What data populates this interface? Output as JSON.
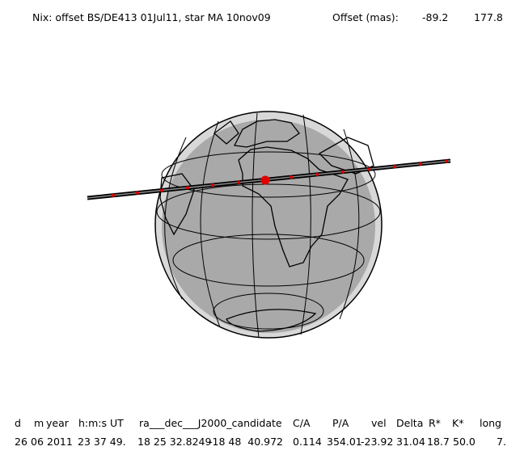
{
  "header": {
    "title": "Nix: offset BS/DE413 01Jul11, star MA 10nov09",
    "offset_label": "Offset (mas):",
    "offset_values": [
      "-89.2",
      "177.8"
    ]
  },
  "table": {
    "columns": [
      "d",
      "m",
      "year",
      "h:m:s UT",
      "ra___dec___J2000_candidate",
      "C/A",
      "P/A",
      "vel",
      "Delta",
      "R*",
      "K*",
      "long"
    ],
    "row": [
      "26",
      "06",
      "2011",
      "23 37 49.",
      "18 25 32.8249",
      "-18 48  40.972",
      "0.114",
      "354.01",
      "-23.92",
      "31.04",
      "18.7",
      "50.0",
      "7."
    ]
  }
}
